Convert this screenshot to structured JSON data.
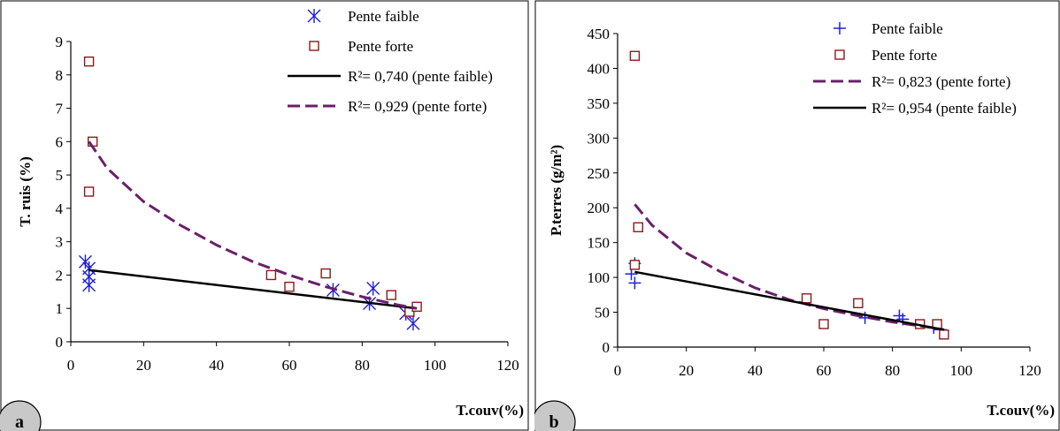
{
  "chart_data": [
    {
      "type": "scatter",
      "panel_label": "a",
      "xlabel": "T.couv(%)",
      "ylabel": "T. ruis (%)",
      "xlim": [
        0,
        120
      ],
      "ylim": [
        0,
        9
      ],
      "xticks": [
        "0",
        "20",
        "40",
        "60",
        "80",
        "100",
        "120"
      ],
      "yticks": [
        "0",
        "1",
        "2",
        "3",
        "4",
        "5",
        "6",
        "7",
        "8",
        "9"
      ],
      "grid": false,
      "legend_position": "top-right",
      "series": [
        {
          "name": "Pente faible",
          "marker": "asterisk",
          "color": "#1f1fd8",
          "points": [
            [
              4,
              2.4
            ],
            [
              5,
              2.2
            ],
            [
              5,
              1.95
            ],
            [
              5,
              1.7
            ],
            [
              72,
              1.55
            ],
            [
              82,
              1.15
            ],
            [
              83,
              1.6
            ],
            [
              92,
              0.85
            ],
            [
              94,
              0.55
            ]
          ]
        },
        {
          "name": "Pente forte",
          "marker": "square",
          "color": "#8b1a1a",
          "points": [
            [
              5,
              8.4
            ],
            [
              5,
              4.5
            ],
            [
              6,
              6.0
            ],
            [
              55,
              2.0
            ],
            [
              60,
              1.65
            ],
            [
              70,
              2.05
            ],
            [
              88,
              1.4
            ],
            [
              93,
              0.9
            ],
            [
              95,
              1.05
            ]
          ]
        },
        {
          "name": "R²= 0,740 (pente faible)",
          "style": "solid-line",
          "color": "#000000",
          "x": [
            5,
            95
          ],
          "y": [
            2.15,
            1.0
          ]
        },
        {
          "name": "R²= 0,929 (pente forte)",
          "style": "dashed-line",
          "color": "#6b1f6b",
          "x": [
            5,
            10,
            20,
            30,
            40,
            50,
            60,
            70,
            80,
            90,
            95
          ],
          "y": [
            6.0,
            5.2,
            4.2,
            3.5,
            2.9,
            2.4,
            2.0,
            1.65,
            1.35,
            1.1,
            1.0
          ]
        }
      ]
    },
    {
      "type": "scatter",
      "panel_label": "b",
      "xlabel": "T.couv(%)",
      "ylabel": "P.terres (g/m²)",
      "xlim": [
        0,
        120
      ],
      "ylim": [
        0,
        450
      ],
      "xticks": [
        "0",
        "20",
        "40",
        "60",
        "80",
        "100",
        "120"
      ],
      "yticks": [
        "0",
        "50",
        "100",
        "150",
        "200",
        "250",
        "300",
        "350",
        "400",
        "450"
      ],
      "grid": false,
      "legend_position": "top-right",
      "series": [
        {
          "name": "Pente faible",
          "marker": "plus",
          "color": "#1f1fd8",
          "points": [
            [
              4,
              105
            ],
            [
              5,
              92
            ],
            [
              5,
              120
            ],
            [
              72,
              42
            ],
            [
              82,
              45
            ],
            [
              83,
              40
            ],
            [
              92,
              28
            ],
            [
              94,
              25
            ]
          ]
        },
        {
          "name": "Pente forte",
          "marker": "square",
          "color": "#8b1a1a",
          "points": [
            [
              5,
              418
            ],
            [
              5,
              118
            ],
            [
              6,
              172
            ],
            [
              55,
              70
            ],
            [
              60,
              33
            ],
            [
              70,
              63
            ],
            [
              88,
              33
            ],
            [
              93,
              33
            ],
            [
              95,
              18
            ]
          ]
        },
        {
          "name": "R²= 0,823 (pente forte)",
          "style": "dashed-line",
          "color": "#6b1f6b",
          "x": [
            5,
            10,
            20,
            30,
            40,
            50,
            60,
            70,
            80,
            90,
            95
          ],
          "y": [
            205,
            175,
            135,
            108,
            85,
            68,
            55,
            45,
            36,
            29,
            25
          ]
        },
        {
          "name": "R²= 0,954 (pente faible)",
          "style": "solid-line",
          "color": "#000000",
          "x": [
            5,
            95
          ],
          "y": [
            108,
            25
          ]
        }
      ]
    }
  ]
}
